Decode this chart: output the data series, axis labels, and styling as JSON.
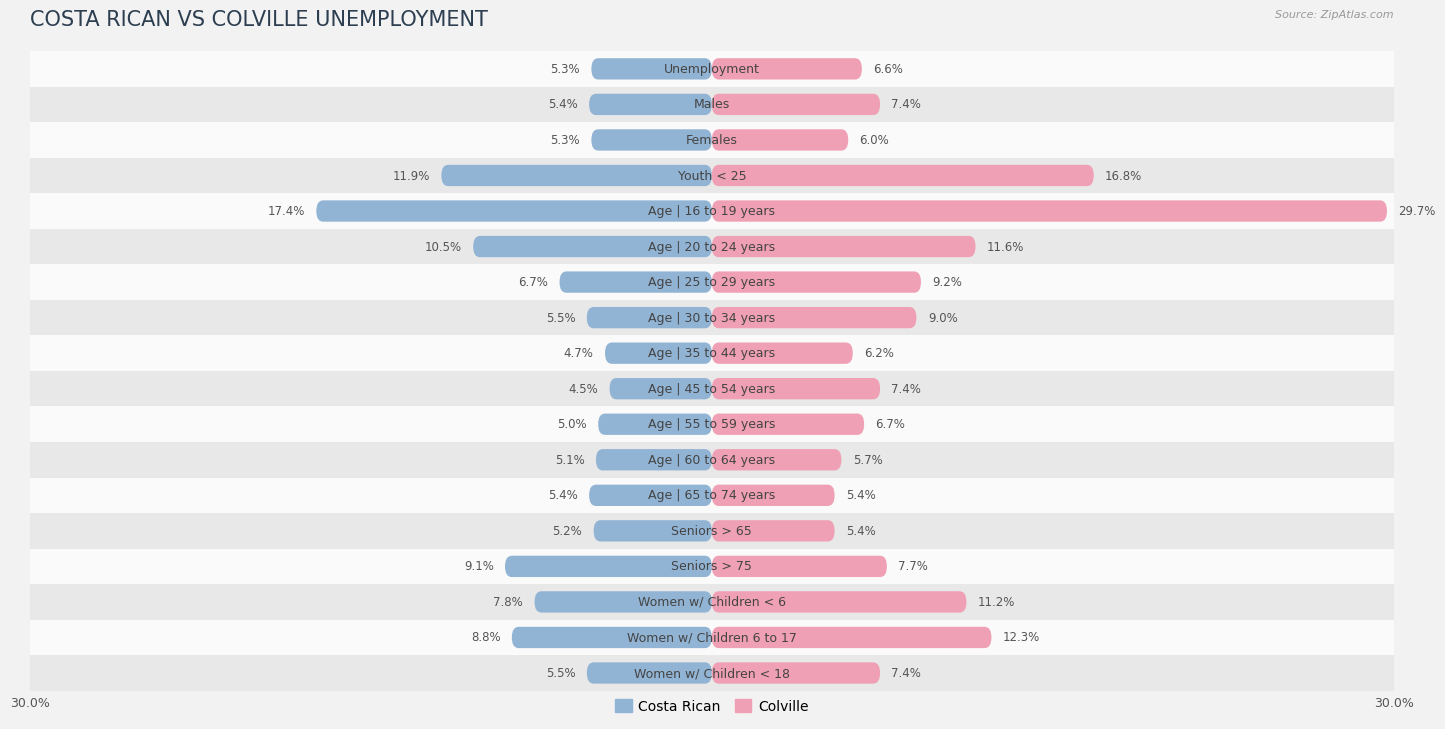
{
  "title": "COSTA RICAN VS COLVILLE UNEMPLOYMENT",
  "source": "Source: ZipAtlas.com",
  "categories": [
    "Unemployment",
    "Males",
    "Females",
    "Youth < 25",
    "Age | 16 to 19 years",
    "Age | 20 to 24 years",
    "Age | 25 to 29 years",
    "Age | 30 to 34 years",
    "Age | 35 to 44 years",
    "Age | 45 to 54 years",
    "Age | 55 to 59 years",
    "Age | 60 to 64 years",
    "Age | 65 to 74 years",
    "Seniors > 65",
    "Seniors > 75",
    "Women w/ Children < 6",
    "Women w/ Children 6 to 17",
    "Women w/ Children < 18"
  ],
  "costa_rican": [
    5.3,
    5.4,
    5.3,
    11.9,
    17.4,
    10.5,
    6.7,
    5.5,
    4.7,
    4.5,
    5.0,
    5.1,
    5.4,
    5.2,
    9.1,
    7.8,
    8.8,
    5.5
  ],
  "colville": [
    6.6,
    7.4,
    6.0,
    16.8,
    29.7,
    11.6,
    9.2,
    9.0,
    6.2,
    7.4,
    6.7,
    5.7,
    5.4,
    5.4,
    7.7,
    11.2,
    12.3,
    7.4
  ],
  "costa_rican_color": "#92b4d4",
  "colville_color": "#f0a0b4",
  "bg_color": "#f2f2f2",
  "row_bg_light": "#fafafa",
  "row_bg_dark": "#e8e8e8",
  "axis_limit": 30.0,
  "title_fontsize": 15,
  "label_fontsize": 9,
  "value_fontsize": 8.5,
  "legend_fontsize": 10,
  "bar_height": 0.6
}
